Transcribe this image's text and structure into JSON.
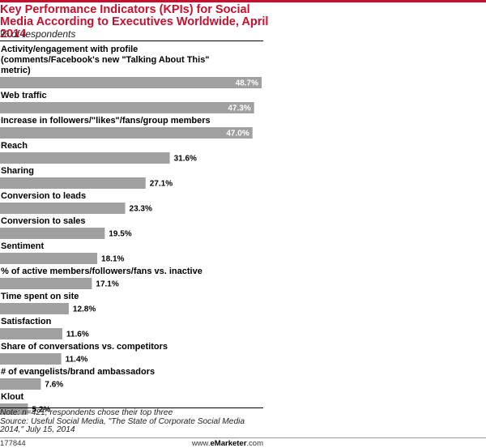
{
  "header": {
    "title": "Key Performance Indicators (KPIs) for Social Media According to Executives Worldwide, April 2014",
    "subtitle": "% of respondents"
  },
  "footer": {
    "note": "Note: n=421; respondents chose their top three",
    "source": "Source: Useful Social Media, \"The State of Corporate Social Media 2014,\" July 15, 2014",
    "chart_id": "177844",
    "credit_prefix": "www.",
    "credit_brand": "eMarketer",
    "credit_suffix": ".com"
  },
  "colors": {
    "bar": "#a0a0a0",
    "accent": "#c8102e"
  },
  "chart_data": {
    "type": "bar",
    "orientation": "horizontal",
    "categories": [
      "Activity/engagement with profile (comments/Facebook's new \"Talking About This\" metric)",
      "Web traffic",
      "Increase in followers/\"likes\"/fans/group members",
      "Reach",
      "Sharing",
      "Conversion to leads",
      "Conversion to sales",
      "Sentiment",
      "% of active members/followers/fans vs. inactive",
      "Time spent on site",
      "Satisfaction",
      "Share of conversations vs. competitors",
      "# of evangelists/brand ambassadors",
      "Klout"
    ],
    "values": [
      48.7,
      47.3,
      47.0,
      31.6,
      27.1,
      23.3,
      19.5,
      18.1,
      17.1,
      12.8,
      11.6,
      11.4,
      7.6,
      5.2
    ],
    "value_labels": [
      "48.7%",
      "47.3%",
      "47.0%",
      "31.6%",
      "27.1%",
      "23.3%",
      "19.5%",
      "18.1%",
      "17.1%",
      "12.8%",
      "11.6%",
      "11.4%",
      "7.6%",
      "5.2%"
    ],
    "xlim": [
      0,
      48.7
    ]
  }
}
